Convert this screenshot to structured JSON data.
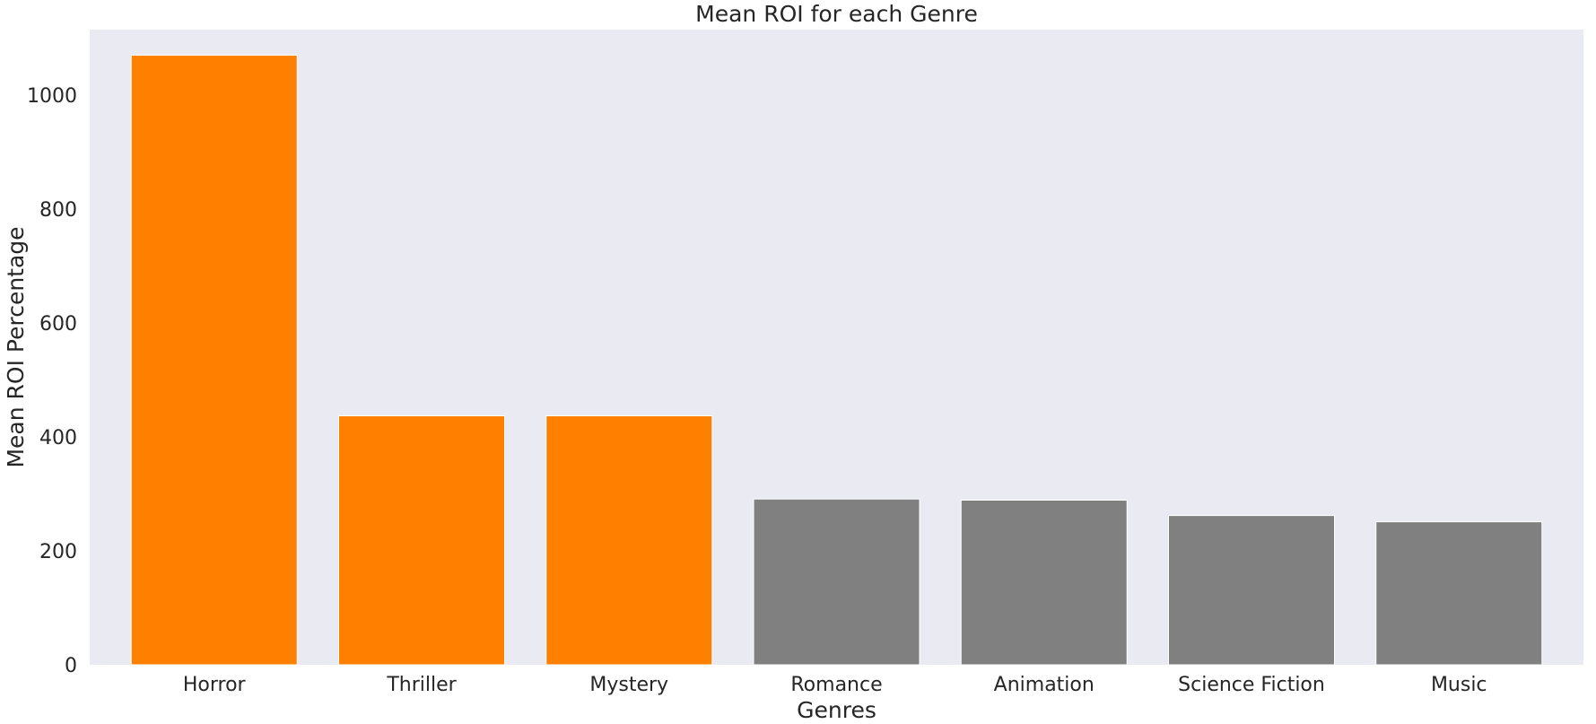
{
  "chart_data": {
    "type": "bar",
    "title": "Mean ROI for each Genre",
    "xlabel": "Genres",
    "ylabel": "Mean ROI Percentage",
    "categories": [
      "Horror",
      "Thriller",
      "Mystery",
      "Romance",
      "Animation",
      "Science Fiction",
      "Music"
    ],
    "values": [
      1070,
      437,
      437,
      291,
      289,
      262,
      251
    ],
    "bar_colors": [
      "#ff7f00",
      "#ff7f00",
      "#ff7f00",
      "#808080",
      "#808080",
      "#808080",
      "#808080"
    ],
    "ylim": [
      0,
      1115
    ],
    "yticks": [
      0,
      200,
      400,
      600,
      800,
      1000
    ],
    "grid": false,
    "background_color": "#eaeaf2"
  }
}
